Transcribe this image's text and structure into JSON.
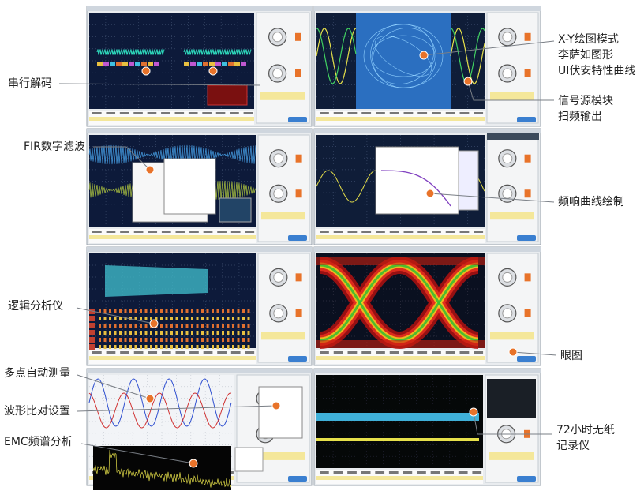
{
  "callouts": [
    {
      "lines": [
        "串行解码"
      ]
    },
    {
      "lines": [
        "X-Y绘图模式",
        "李萨如图形",
        "UI伏安特性曲线"
      ]
    },
    {
      "lines": [
        "信号源模块",
        "扫频输出"
      ]
    },
    {
      "lines": [
        "FIR数字滤波"
      ]
    },
    {
      "lines": [
        "频响曲线绘制"
      ]
    },
    {
      "lines": [
        "逻辑分析仪"
      ]
    },
    {
      "lines": [
        "眼图"
      ]
    },
    {
      "lines": [
        "多点自动测量"
      ]
    },
    {
      "lines": [
        "波形比对设置"
      ]
    },
    {
      "lines": [
        "EMC频谱分析"
      ]
    },
    {
      "lines": [
        "72小时无纸",
        "记录仪"
      ]
    }
  ]
}
